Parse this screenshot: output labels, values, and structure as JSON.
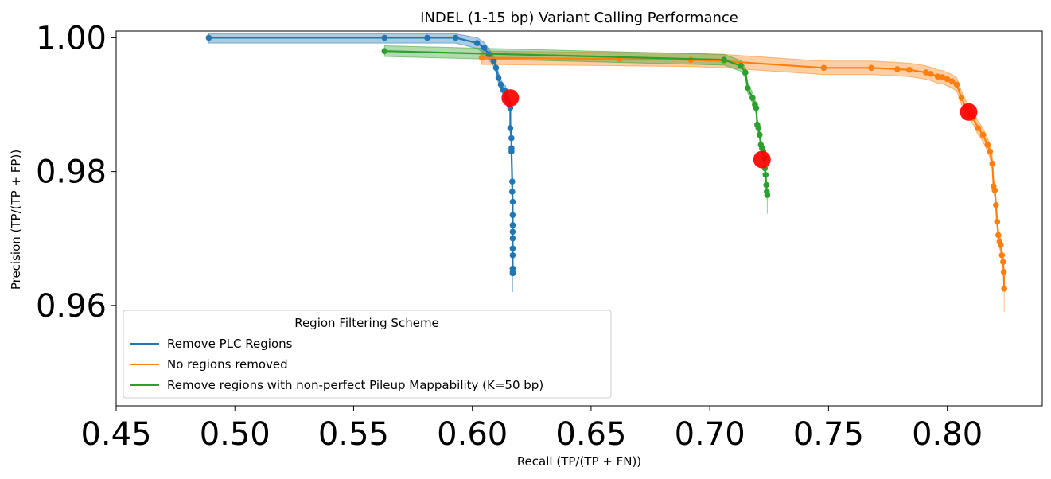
{
  "chart_data": {
    "type": "line",
    "title": "INDEL (1-15 bp) Variant Calling Performance",
    "xlabel": "Recall (TP/(TP + FN))",
    "ylabel": "Precision (TP/(TP + FP))",
    "xlim": [
      0.45,
      0.84
    ],
    "ylim": [
      0.945,
      1.001
    ],
    "xticks": [
      "0.45",
      "0.50",
      "0.55",
      "0.60",
      "0.65",
      "0.70",
      "0.75",
      "0.80"
    ],
    "yticks": [
      "0.96",
      "0.98",
      "1.00"
    ],
    "legend": {
      "title": "Region Filtering Scheme",
      "position": "lower-left"
    },
    "series": [
      {
        "name": "Remove PLC Regions",
        "color": "#1f77b4",
        "band_width": 0.0008,
        "x": [
          0.489,
          0.563,
          0.581,
          0.593,
          0.602,
          0.605,
          0.607,
          0.609,
          0.61,
          0.611,
          0.612,
          0.613,
          0.614,
          0.6145,
          0.615,
          0.6155,
          0.616,
          0.616,
          0.6165,
          0.6165,
          0.6165,
          0.6168,
          0.6168,
          0.617,
          0.617,
          0.617,
          0.617,
          0.617,
          0.617,
          0.617,
          0.617,
          0.617,
          0.617
        ],
        "y": [
          1.0,
          1.0,
          1.0,
          1.0,
          0.9992,
          0.9985,
          0.9975,
          0.9965,
          0.9955,
          0.994,
          0.993,
          0.9922,
          0.992,
          0.991,
          0.9905,
          0.99,
          0.9895,
          0.9865,
          0.985,
          0.9835,
          0.983,
          0.9785,
          0.977,
          0.9755,
          0.9735,
          0.972,
          0.971,
          0.97,
          0.9685,
          0.9675,
          0.9655,
          0.965,
          0.9648
        ]
      },
      {
        "name": "No regions removed",
        "color": "#ff7f0e",
        "band_width": 0.001,
        "x": [
          0.604,
          0.662,
          0.692,
          0.706,
          0.748,
          0.768,
          0.779,
          0.784,
          0.791,
          0.793,
          0.796,
          0.798,
          0.8,
          0.802,
          0.804,
          0.806,
          0.808,
          0.81,
          0.811,
          0.813,
          0.815,
          0.817,
          0.818,
          0.819,
          0.8195,
          0.82,
          0.8205,
          0.821,
          0.8215,
          0.822,
          0.8225,
          0.823,
          0.8235,
          0.8238,
          0.824
        ],
        "y": [
          0.997,
          0.9968,
          0.9967,
          0.9965,
          0.9955,
          0.9955,
          0.9953,
          0.9952,
          0.9948,
          0.9946,
          0.9942,
          0.9941,
          0.9938,
          0.9935,
          0.993,
          0.991,
          0.9895,
          0.9885,
          0.988,
          0.9865,
          0.9855,
          0.984,
          0.983,
          0.9812,
          0.9778,
          0.9772,
          0.975,
          0.9725,
          0.9705,
          0.9695,
          0.969,
          0.9675,
          0.9665,
          0.965,
          0.9625
        ]
      },
      {
        "name": "Remove regions with non-perfect Pileup Mappability (K=50 bp)",
        "color": "#2ca02c",
        "band_width": 0.0008,
        "x": [
          0.563,
          0.706,
          0.713,
          0.715,
          0.716,
          0.718,
          0.719,
          0.7195,
          0.72,
          0.7205,
          0.721,
          0.7215,
          0.722,
          0.7225,
          0.723,
          0.7232,
          0.7235,
          0.7238,
          0.724,
          0.7242
        ],
        "y": [
          0.998,
          0.9967,
          0.9958,
          0.9948,
          0.9925,
          0.991,
          0.99,
          0.9895,
          0.987,
          0.9865,
          0.9855,
          0.984,
          0.9835,
          0.983,
          0.982,
          0.9805,
          0.9795,
          0.978,
          0.977,
          0.9765
        ]
      }
    ],
    "highlights": [
      {
        "x": 0.616,
        "y": 0.991,
        "color": "#ff0000"
      },
      {
        "x": 0.722,
        "y": 0.9818,
        "color": "#ff0000"
      },
      {
        "x": 0.809,
        "y": 0.9889,
        "color": "#ff0000"
      }
    ]
  }
}
